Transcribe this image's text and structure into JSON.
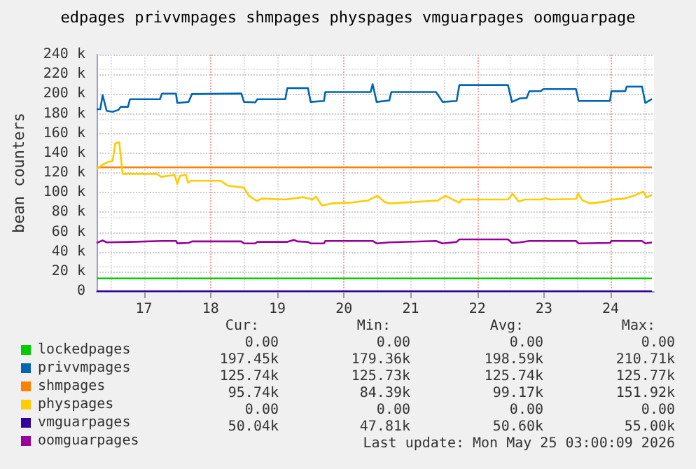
{
  "chart_data": {
    "type": "line",
    "title": "edpages privvmpages shmpages physpages vmguarpages oomguarpage",
    "ylabel": "bean counters",
    "xlim": [
      16.29,
      24.65
    ],
    "xticks": [
      17,
      18,
      19,
      20,
      21,
      22,
      23,
      24
    ],
    "ylim": [
      0,
      240
    ],
    "yticks": [
      {
        "value": 0,
        "label": "0"
      },
      {
        "value": 20,
        "label": "20 k"
      },
      {
        "value": 40,
        "label": "40 k"
      },
      {
        "value": 60,
        "label": "60 k"
      },
      {
        "value": 80,
        "label": "80 k"
      },
      {
        "value": 100,
        "label": "100 k"
      },
      {
        "value": 120,
        "label": "120 k"
      },
      {
        "value": 140,
        "label": "140 k"
      },
      {
        "value": 160,
        "label": "160 k"
      },
      {
        "value": 180,
        "label": "180 k"
      },
      {
        "value": 200,
        "label": "200 k"
      },
      {
        "value": 220,
        "label": "220 k"
      },
      {
        "value": 240,
        "label": "240 k"
      }
    ],
    "grid": true,
    "legend": "bottom left",
    "marker": "none",
    "line_style": "solid",
    "series": [
      {
        "name": "lockedpages",
        "color": "#00cc00",
        "x": [
          16.29,
          24.62
        ],
        "values": [
          13,
          13
        ]
      },
      {
        "name": "privvmpages",
        "color": "#0066b3",
        "x": [
          16.29,
          16.345,
          16.38,
          16.44,
          16.53,
          16.62,
          16.65,
          16.76,
          16.79,
          17.24,
          17.27,
          17.48,
          17.5,
          17.67,
          17.72,
          18.46,
          18.5,
          18.67,
          18.7,
          19.12,
          19.15,
          19.46,
          19.5,
          19.7,
          19.72,
          20.4,
          20.43,
          20.49,
          20.68,
          20.71,
          21.38,
          21.48,
          21.69,
          21.73,
          22.46,
          22.52,
          22.64,
          22.74,
          22.78,
          22.95,
          22.99,
          23.48,
          23.52,
          23.99,
          24.01,
          24.22,
          24.24,
          24.47,
          24.52,
          24.62
        ],
        "values": [
          184.6,
          184.6,
          199,
          183,
          182,
          184,
          187,
          187,
          194.7,
          194.7,
          200.4,
          200.4,
          191,
          192,
          200,
          200.5,
          192,
          191.5,
          194.7,
          194.7,
          206,
          206,
          192,
          193,
          202,
          202,
          210,
          192,
          193.5,
          202,
          202,
          192,
          193,
          209,
          209,
          192,
          195.6,
          196,
          202.8,
          203,
          205,
          205,
          193,
          193,
          202.8,
          203,
          207.5,
          207.5,
          191,
          195
        ]
      },
      {
        "name": "shmpages",
        "color": "#ff8000",
        "x": [
          16.29,
          24.62
        ],
        "values": [
          125.7,
          125.7
        ]
      },
      {
        "name": "physpages",
        "color": "#ffcc00",
        "x": [
          16.29,
          16.39,
          16.46,
          16.53,
          16.57,
          16.63,
          16.68,
          17.19,
          17.26,
          17.46,
          17.5,
          17.54,
          17.63,
          17.66,
          17.7,
          18.15,
          18.26,
          18.5,
          18.57,
          18.69,
          18.77,
          19.12,
          19.39,
          19.53,
          19.58,
          19.67,
          19.81,
          20.08,
          20.36,
          20.5,
          20.61,
          20.68,
          21.41,
          21.52,
          21.66,
          21.73,
          21.76,
          22.46,
          22.53,
          22.62,
          22.71,
          22.95,
          23.02,
          23.09,
          23.48,
          23.51,
          23.58,
          23.69,
          23.93,
          24.03,
          24.21,
          24.35,
          24.49,
          24.54,
          24.62
        ],
        "values": [
          124,
          128.8,
          131,
          132,
          150,
          151,
          119,
          119,
          116,
          118,
          108.8,
          117,
          118,
          110,
          112,
          112,
          107,
          105,
          97,
          91.6,
          94,
          93,
          95.4,
          93,
          96,
          86.8,
          89,
          89.7,
          92,
          96.9,
          90.6,
          89,
          92,
          96.9,
          92,
          89.7,
          93,
          93,
          98.8,
          91,
          93,
          93,
          94.5,
          93,
          93.5,
          99,
          92,
          89,
          91,
          93,
          94,
          96.9,
          101,
          95,
          97.8
        ]
      },
      {
        "name": "vmguarpages",
        "color": "#330099",
        "x": [
          16.29,
          24.62
        ],
        "values": [
          0,
          0
        ]
      },
      {
        "name": "oomguarpages",
        "color": "#990099",
        "x": [
          16.29,
          16.38,
          16.44,
          16.79,
          17.27,
          17.48,
          17.5,
          17.67,
          17.72,
          18.46,
          18.5,
          18.67,
          18.7,
          19.15,
          19.25,
          19.3,
          19.46,
          19.5,
          19.7,
          19.72,
          20.43,
          20.49,
          20.68,
          21.38,
          21.48,
          21.69,
          21.73,
          22.46,
          22.52,
          22.64,
          22.78,
          23.48,
          23.52,
          23.99,
          24.01,
          24.47,
          24.52,
          24.62
        ],
        "values": [
          49,
          51.5,
          49.5,
          50,
          51,
          51,
          48.5,
          49,
          50.5,
          50.5,
          48.5,
          48.5,
          50,
          50,
          52,
          50.5,
          50,
          48.5,
          48.5,
          51,
          51,
          48.5,
          49.5,
          51,
          48.5,
          50,
          52.5,
          52.5,
          49,
          49.5,
          51,
          51,
          48.5,
          49,
          51,
          51,
          48.5,
          49.5
        ]
      }
    ],
    "annotations": [
      "Cur:",
      "Min:",
      "Avg:",
      "Max:",
      "0.00",
      "0.00",
      "0.00",
      "0.00",
      "197.45k",
      "179.36k",
      "198.59k",
      "210.71k",
      "125.74k",
      "125.73k",
      "125.74k",
      "125.77k",
      "95.74k",
      "84.39k",
      "99.17k",
      "151.92k",
      "0.00",
      "0.00",
      "0.00",
      "0.00",
      "50.04k",
      "47.81k",
      "50.60k",
      "55.00k",
      "Last update: Mon May 25 03:00:09 2026"
    ]
  }
}
